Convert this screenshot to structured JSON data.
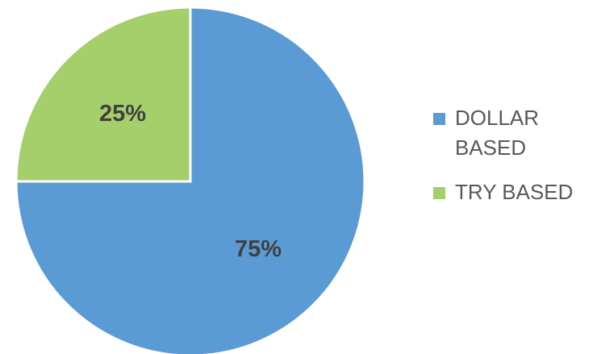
{
  "chart_data": {
    "type": "pie",
    "title": "",
    "categories": [
      "DOLLAR BASED",
      "TRY BASED"
    ],
    "values": [
      75,
      25
    ],
    "data_labels": [
      "75%",
      "25%"
    ],
    "colors": [
      "#5B9BD5",
      "#A5CF6A"
    ],
    "start_angle_deg": 0,
    "direction": "clockwise",
    "legend_placement": "right"
  },
  "legend": {
    "items": [
      {
        "label": "DOLLAR BASED",
        "color": "#5B9BD5"
      },
      {
        "label": "TRY BASED",
        "color": "#A5CF6A"
      }
    ]
  }
}
